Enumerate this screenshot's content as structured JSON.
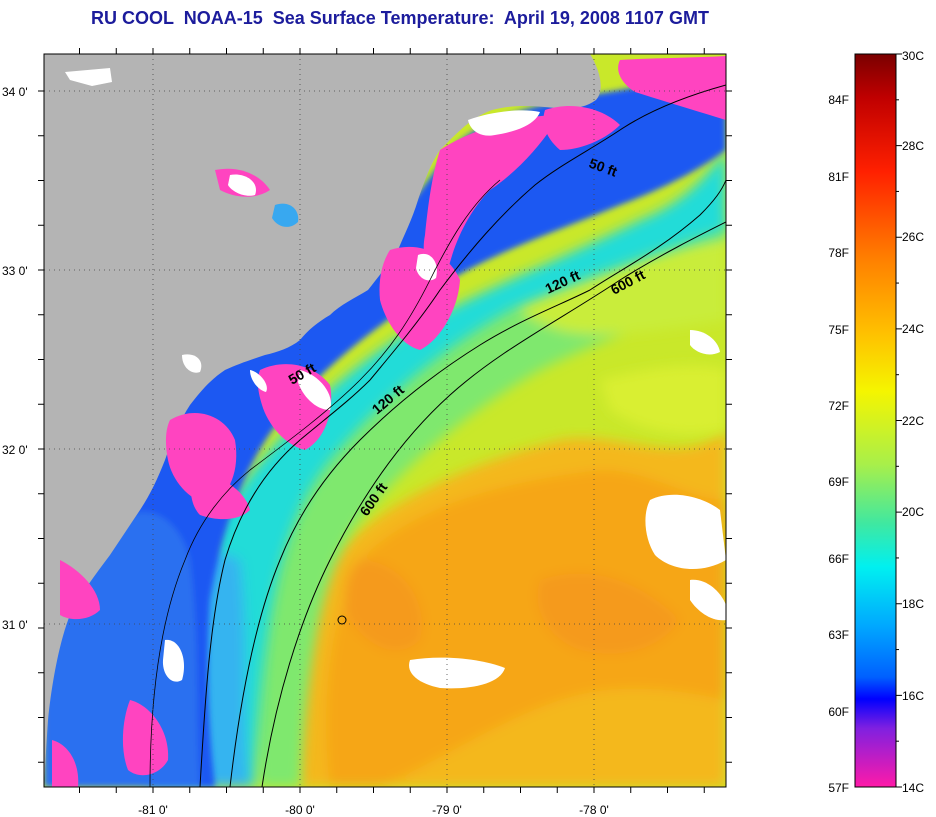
{
  "title": "RU COOL  NOAA-15  Sea Surface Temperature:  April 19, 2008 1107 GMT",
  "map": {
    "lat_ticks": [
      {
        "value": 34.0,
        "label": "34 0'"
      },
      {
        "value": 33.0,
        "label": "33 0'"
      },
      {
        "value": 32.0,
        "label": "32 0'"
      },
      {
        "value": 31.0,
        "label": "31 0'"
      }
    ],
    "lon_ticks": [
      {
        "value": -81.0,
        "label": "-81 0'"
      },
      {
        "value": -80.0,
        "label": "-80 0'"
      },
      {
        "value": -79.0,
        "label": "-79 0'"
      },
      {
        "value": -78.0,
        "label": "-78 0'"
      }
    ],
    "contour_labels": {
      "c50a": "50 ft",
      "c50b": "50 ft",
      "c120a": "120 ft",
      "c120b": "120 ft",
      "c600a": "600 ft",
      "c600b": "600 ft"
    }
  },
  "colorbar": {
    "celsius": [
      "30C",
      "28C",
      "26C",
      "24C",
      "22C",
      "20C",
      "18C",
      "16C",
      "14C"
    ],
    "fahrenheit": [
      "84F",
      "81F",
      "78F",
      "75F",
      "72F",
      "69F",
      "66F",
      "63F",
      "60F",
      "57F"
    ]
  }
}
